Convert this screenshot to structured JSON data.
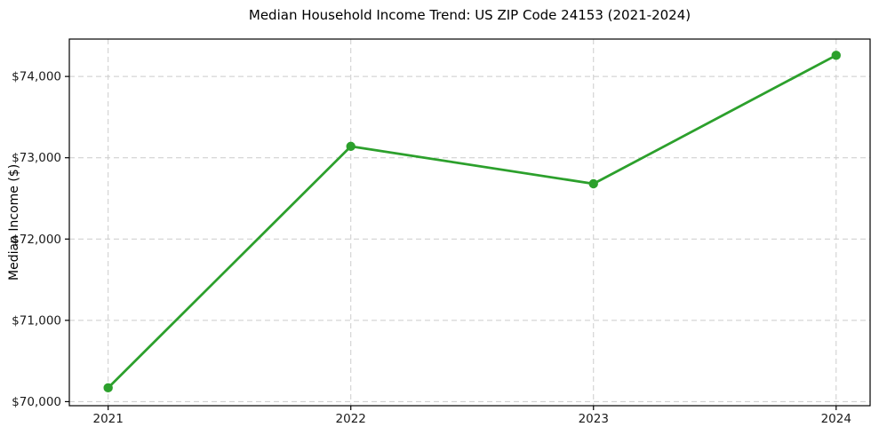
{
  "chart_data": {
    "type": "line",
    "title": "Median Household Income Trend: US ZIP Code 24153 (2021-2024)",
    "xlabel": "",
    "ylabel": "Median Income ($)",
    "x": [
      2021,
      2022,
      2023,
      2024
    ],
    "xtick_labels": [
      "2021",
      "2022",
      "2023",
      "2024"
    ],
    "values": [
      70170,
      73140,
      72680,
      74260
    ],
    "yticks": [
      70000,
      71000,
      72000,
      73000,
      74000
    ],
    "ytick_labels": [
      "$70,000",
      "$71,000",
      "$72,000",
      "$73,000",
      "$74,000"
    ],
    "ylim": [
      69950,
      74460
    ],
    "xlim": [
      2020.84,
      2024.14
    ],
    "grid": true,
    "legend_position": "none",
    "line_color": "#2ca02c",
    "grid_color": "#cccccc",
    "axis_color": "#000000",
    "text_color": "#1a1a1a",
    "marker": "circle"
  }
}
